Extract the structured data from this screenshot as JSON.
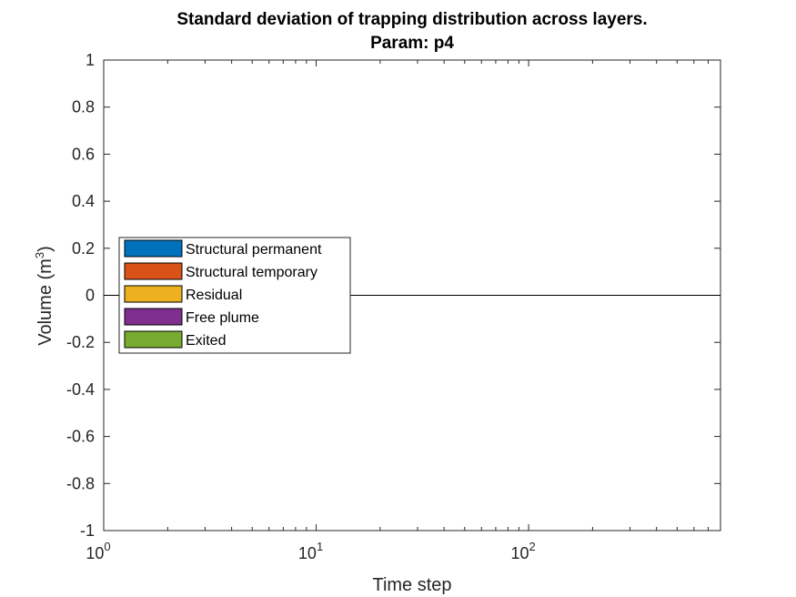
{
  "chart_data": {
    "type": "area",
    "title": "Standard deviation of trapping distribution across layers.",
    "subtitle": "Param: p4",
    "xlabel": "Time step",
    "ylabel": {
      "main": "Volume (m",
      "sup": "3",
      "close": ")"
    },
    "xscale": "log",
    "xlim": [
      1,
      800
    ],
    "ylim": [
      -1,
      1
    ],
    "grid": false,
    "legend_position": "left",
    "x_ticks": [
      {
        "value": 1,
        "base": "10",
        "exp": "0"
      },
      {
        "value": 10,
        "base": "10",
        "exp": "1"
      },
      {
        "value": 100,
        "base": "10",
        "exp": "2"
      }
    ],
    "y_ticks": [
      {
        "value": 1,
        "label": "1"
      },
      {
        "value": 0.8,
        "label": "0.8"
      },
      {
        "value": 0.6,
        "label": "0.6"
      },
      {
        "value": 0.4,
        "label": "0.4"
      },
      {
        "value": 0.2,
        "label": "0.2"
      },
      {
        "value": 0,
        "label": "0"
      },
      {
        "value": -0.2,
        "label": "-0.2"
      },
      {
        "value": -0.4,
        "label": "-0.4"
      },
      {
        "value": -0.6,
        "label": "-0.6"
      },
      {
        "value": -0.8,
        "label": "-0.8"
      },
      {
        "value": -1,
        "label": "-1"
      }
    ],
    "x": [
      1,
      800
    ],
    "series": [
      {
        "name": "Structural permanent",
        "color": "#0072BD",
        "values": [
          0,
          0
        ]
      },
      {
        "name": "Structural temporary",
        "color": "#D95319",
        "values": [
          0,
          0
        ]
      },
      {
        "name": "Residual",
        "color": "#EDB120",
        "values": [
          0,
          0
        ]
      },
      {
        "name": "Free plume",
        "color": "#7E2F8E",
        "values": [
          0,
          0
        ]
      },
      {
        "name": "Exited",
        "color": "#77AC30",
        "values": [
          0,
          0
        ]
      }
    ]
  }
}
